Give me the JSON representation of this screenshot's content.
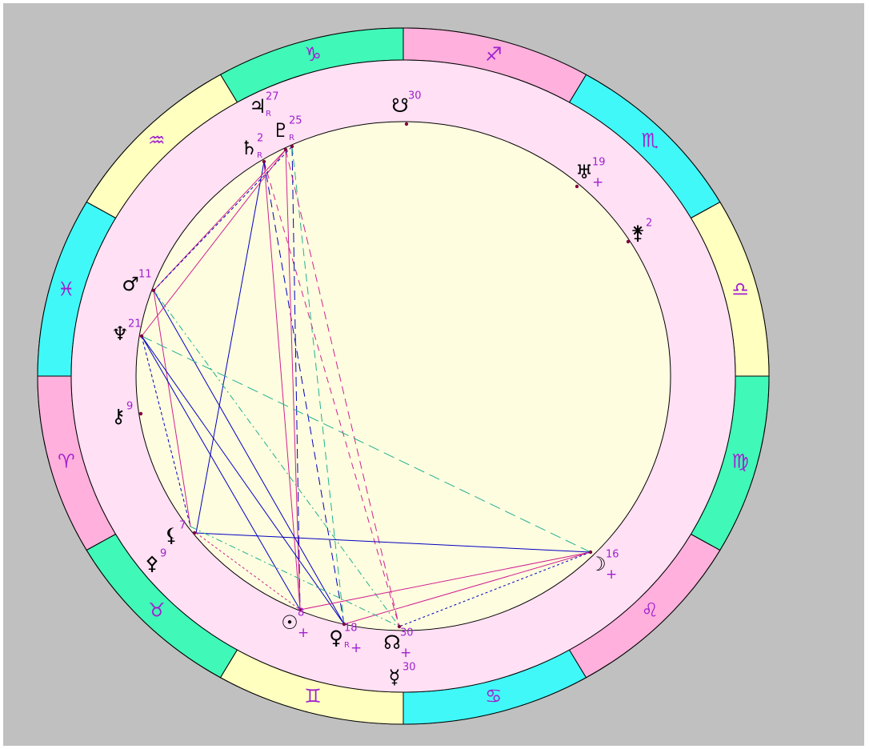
{
  "zodiac": {
    "signs": [
      "♈",
      "♉",
      "♊",
      "♋",
      "♌",
      "♍",
      "♎",
      "♏",
      "♐",
      "♑",
      "♒",
      "♓"
    ]
  },
  "bodies": [
    {
      "glyph": "☋",
      "degree": "30"
    },
    {
      "glyph": "♅",
      "degree": "19",
      "dignity": "+"
    },
    {
      "glyph": "⚵",
      "degree": "2"
    },
    {
      "glyph": "☽",
      "degree": "16",
      "dignity": "+"
    },
    {
      "glyph": "☊",
      "degree": "30",
      "dignity": "+"
    },
    {
      "glyph": "☿",
      "degree": "30"
    },
    {
      "glyph": "♀",
      "degree": "18",
      "retrograde": "R",
      "dignity": "+"
    },
    {
      "glyph": "☉",
      "degree": "8",
      "dignity": "+"
    },
    {
      "glyph": "⚴",
      "degree": "9"
    },
    {
      "glyph": "⚸",
      "degree": "7"
    },
    {
      "glyph": "⚷",
      "degree": "9"
    },
    {
      "glyph": "♆",
      "degree": "21"
    },
    {
      "glyph": "♂",
      "degree": "11"
    },
    {
      "glyph": "♄",
      "degree": "2",
      "retrograde": "R"
    },
    {
      "glyph": "♇",
      "degree": "25",
      "retrograde": "R"
    },
    {
      "glyph": "♃",
      "degree": "27",
      "retrograde": "R"
    }
  ]
}
